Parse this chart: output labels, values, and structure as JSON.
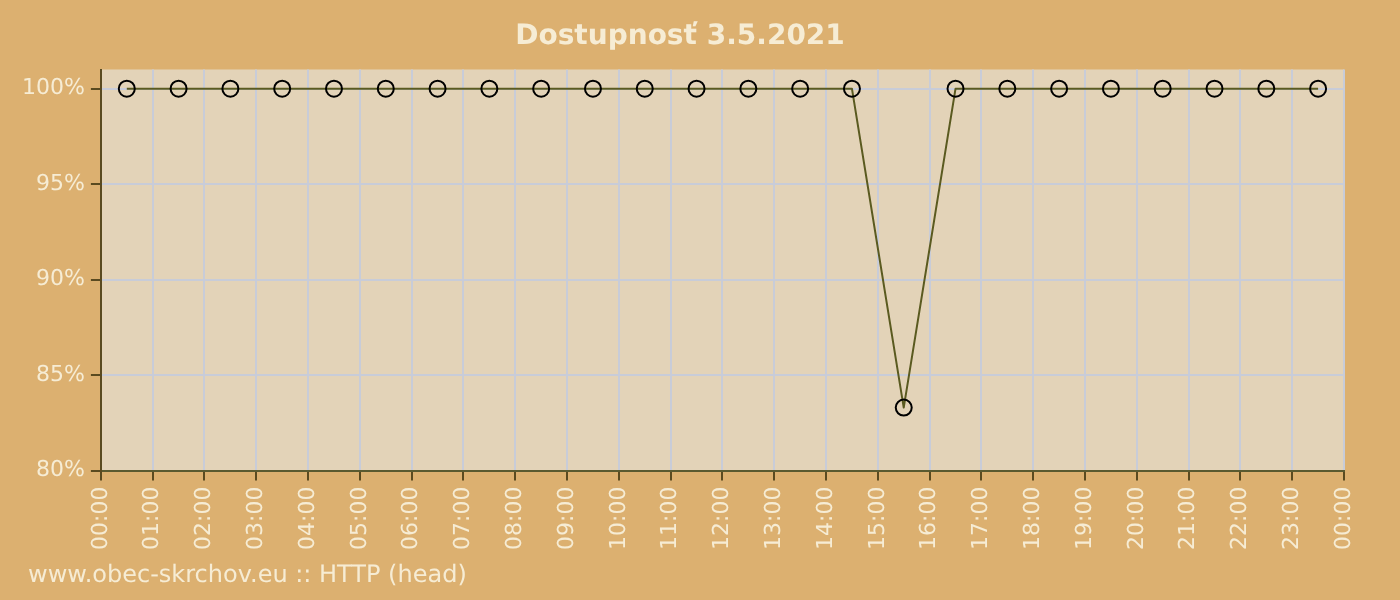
{
  "chart_data": {
    "type": "line",
    "title": "Dostupnosť 3.5.2021",
    "x": [
      0.5,
      1.5,
      2.5,
      3.5,
      4.5,
      5.5,
      6.5,
      7.5,
      8.5,
      9.5,
      10.5,
      11.5,
      12.5,
      13.5,
      14.5,
      15.5,
      16.5,
      17.5,
      18.5,
      19.5,
      20.5,
      21.5,
      22.5,
      23.5
    ],
    "series": [
      {
        "color": "#5a5a20",
        "values": [
          100,
          100,
          100,
          100,
          100,
          100,
          100,
          100,
          100,
          100,
          100,
          100,
          100,
          100,
          100,
          83.3,
          100,
          100,
          100,
          100,
          100,
          100,
          100,
          100
        ]
      }
    ],
    "xlim": [
      0,
      24
    ],
    "xticks": [
      {
        "value": 0,
        "label": "00:00"
      },
      {
        "value": 1,
        "label": "01:00"
      },
      {
        "value": 2,
        "label": "02:00"
      },
      {
        "value": 3,
        "label": "03:00"
      },
      {
        "value": 4,
        "label": "04:00"
      },
      {
        "value": 5,
        "label": "05:00"
      },
      {
        "value": 6,
        "label": "06:00"
      },
      {
        "value": 7,
        "label": "07:00"
      },
      {
        "value": 8,
        "label": "08:00"
      },
      {
        "value": 9,
        "label": "09:00"
      },
      {
        "value": 10,
        "label": "10:00"
      },
      {
        "value": 11,
        "label": "11:00"
      },
      {
        "value": 12,
        "label": "12:00"
      },
      {
        "value": 13,
        "label": "13:00"
      },
      {
        "value": 14,
        "label": "14:00"
      },
      {
        "value": 15,
        "label": "15:00"
      },
      {
        "value": 16,
        "label": "16:00"
      },
      {
        "value": 17,
        "label": "17:00"
      },
      {
        "value": 18,
        "label": "18:00"
      },
      {
        "value": 19,
        "label": "19:00"
      },
      {
        "value": 20,
        "label": "20:00"
      },
      {
        "value": 21,
        "label": "21:00"
      },
      {
        "value": 22,
        "label": "22:00"
      },
      {
        "value": 23,
        "label": "23:00"
      },
      {
        "value": 24,
        "label": "00:00"
      }
    ],
    "ylim": [
      80,
      101
    ],
    "yticks": [
      {
        "value": 80,
        "label": "80%"
      },
      {
        "value": 85,
        "label": "85%"
      },
      {
        "value": 90,
        "label": "90%"
      },
      {
        "value": 95,
        "label": "95%"
      },
      {
        "value": 100,
        "label": "100%"
      }
    ],
    "grid": true,
    "marker": "circle",
    "legend": false,
    "annotations": [
      "www.obec-skrchov.eu :: HTTP (head)"
    ]
  }
}
